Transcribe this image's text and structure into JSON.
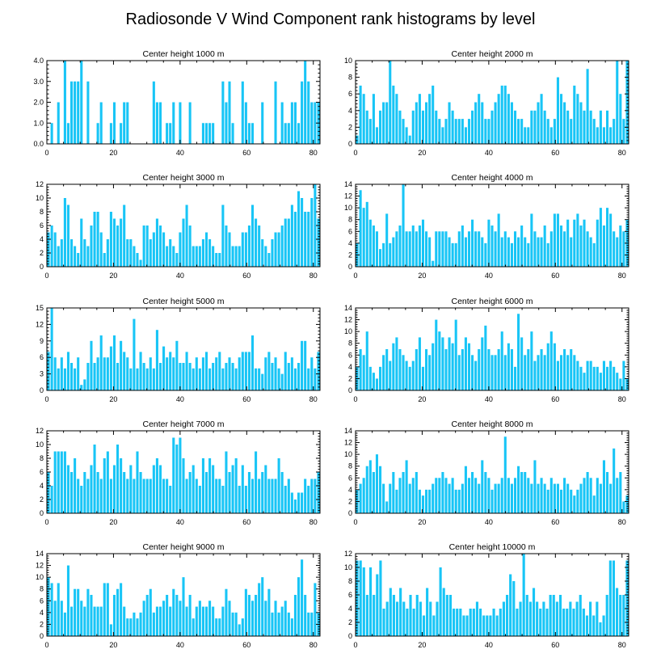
{
  "title": "Radiosonde V Wind Component rank histograms by level",
  "colors": {
    "bar": "#18C5F6",
    "axis": "#000000",
    "background": "#ffffff"
  },
  "chart_data": [
    {
      "type": "bar",
      "title": "Center height 1000 m",
      "xlim": [
        0,
        82
      ],
      "ylim": [
        0,
        4
      ],
      "xticks": [
        0,
        20,
        40,
        60,
        80
      ],
      "yticks": [
        "0.0",
        "1.0",
        "2.0",
        "3.0",
        "4.0"
      ],
      "values": [
        0,
        1,
        0,
        2,
        0,
        4,
        1,
        3,
        3,
        3,
        4,
        0,
        3,
        0,
        0,
        1,
        2,
        0,
        0,
        1,
        2,
        0,
        1,
        2,
        2,
        0,
        0,
        0,
        0,
        0,
        0,
        0,
        3,
        2,
        2,
        0,
        1,
        1,
        2,
        0,
        2,
        0,
        0,
        2,
        0,
        0,
        0,
        1,
        1,
        1,
        1,
        0,
        0,
        3,
        2,
        3,
        1,
        0,
        0,
        3,
        2,
        1,
        1,
        0,
        0,
        2,
        0,
        0,
        0,
        3,
        0,
        2,
        1,
        1,
        2,
        2,
        1,
        3,
        4,
        3,
        2,
        2,
        2
      ]
    },
    {
      "type": "bar",
      "title": "Center height 2000 m",
      "xlim": [
        0,
        82
      ],
      "ylim": [
        0,
        10
      ],
      "xticks": [
        0,
        20,
        40,
        60,
        80
      ],
      "yticks": [
        "0",
        "2",
        "4",
        "6",
        "8",
        "10"
      ],
      "values": [
        1,
        7,
        6,
        4,
        3,
        6,
        2,
        4,
        5,
        5,
        10,
        7,
        6,
        4,
        3,
        2,
        1,
        4,
        5,
        6,
        4,
        5,
        6,
        7,
        4,
        3,
        2,
        3,
        5,
        4,
        3,
        3,
        3,
        2,
        3,
        4,
        5,
        6,
        5,
        3,
        3,
        4,
        5,
        6,
        7,
        7,
        6,
        5,
        4,
        3,
        3,
        2,
        2,
        4,
        4,
        5,
        6,
        4,
        3,
        2,
        3,
        8,
        6,
        5,
        4,
        3,
        7,
        6,
        5,
        4,
        9,
        4,
        3,
        2,
        4,
        2,
        4,
        2,
        3,
        10,
        6,
        3,
        10
      ]
    },
    {
      "type": "bar",
      "title": "Center height 3000 m",
      "xlim": [
        0,
        82
      ],
      "ylim": [
        0,
        12
      ],
      "xticks": [
        0,
        20,
        40,
        60,
        80
      ],
      "yticks": [
        "0",
        "2",
        "4",
        "6",
        "8",
        "10",
        "12"
      ],
      "values": [
        5,
        6,
        5,
        3,
        4,
        10,
        9,
        4,
        3,
        2,
        7,
        4,
        3,
        6,
        8,
        8,
        5,
        2,
        4,
        8,
        7,
        6,
        7,
        9,
        4,
        4,
        3,
        2,
        1,
        6,
        6,
        4,
        5,
        7,
        6,
        5,
        3,
        4,
        3,
        2,
        5,
        7,
        9,
        6,
        3,
        3,
        3,
        4,
        5,
        4,
        3,
        2,
        2,
        9,
        6,
        5,
        3,
        3,
        3,
        5,
        5,
        6,
        9,
        7,
        6,
        4,
        3,
        2,
        4,
        5,
        5,
        6,
        7,
        7,
        9,
        8,
        11,
        10,
        8,
        8,
        10,
        12,
        7
      ]
    },
    {
      "type": "bar",
      "title": "Center height 4000 m",
      "xlim": [
        0,
        82
      ],
      "ylim": [
        0,
        14
      ],
      "xticks": [
        0,
        20,
        40,
        60,
        80
      ],
      "yticks": [
        "0",
        "2",
        "4",
        "6",
        "8",
        "10",
        "12",
        "14"
      ],
      "values": [
        4,
        13,
        10,
        11,
        8,
        7,
        6,
        3,
        4,
        9,
        4,
        5,
        6,
        7,
        14,
        6,
        6,
        7,
        6,
        7,
        8,
        6,
        5,
        1,
        6,
        6,
        6,
        6,
        5,
        4,
        4,
        6,
        7,
        5,
        6,
        8,
        6,
        6,
        5,
        4,
        8,
        7,
        6,
        9,
        5,
        6,
        5,
        4,
        6,
        5,
        7,
        5,
        4,
        9,
        6,
        5,
        5,
        7,
        4,
        6,
        9,
        9,
        7,
        6,
        8,
        5,
        8,
        9,
        7,
        8,
        6,
        5,
        4,
        8,
        10,
        7,
        10,
        9,
        6,
        5,
        7,
        6,
        8
      ]
    },
    {
      "type": "bar",
      "title": "Center height 5000 m",
      "xlim": [
        0,
        82
      ],
      "ylim": [
        0,
        15
      ],
      "xticks": [
        0,
        20,
        40,
        60,
        80
      ],
      "yticks": [
        "0",
        "3",
        "6",
        "9",
        "12",
        "15"
      ],
      "values": [
        7,
        15,
        6,
        4,
        6,
        4,
        7,
        5,
        4,
        6,
        1,
        2,
        5,
        9,
        5,
        6,
        10,
        6,
        6,
        8,
        10,
        5,
        9,
        7,
        6,
        4,
        13,
        4,
        7,
        5,
        4,
        6,
        4,
        11,
        5,
        8,
        6,
        7,
        6,
        9,
        5,
        5,
        7,
        5,
        4,
        6,
        4,
        6,
        7,
        4,
        5,
        6,
        7,
        4,
        5,
        6,
        5,
        4,
        6,
        7,
        7,
        7,
        10,
        4,
        4,
        3,
        6,
        7,
        5,
        6,
        4,
        3,
        7,
        5,
        6,
        4,
        5,
        9,
        9,
        4,
        6,
        4,
        7
      ]
    },
    {
      "type": "bar",
      "title": "Center height 6000 m",
      "xlim": [
        0,
        82
      ],
      "ylim": [
        0,
        14
      ],
      "xticks": [
        0,
        20,
        40,
        60,
        80
      ],
      "yticks": [
        "0",
        "2",
        "4",
        "6",
        "8",
        "10",
        "12",
        "14"
      ],
      "values": [
        4,
        7,
        6,
        10,
        4,
        3,
        2,
        4,
        6,
        7,
        5,
        8,
        9,
        7,
        6,
        5,
        4,
        5,
        7,
        9,
        4,
        7,
        6,
        8,
        12,
        10,
        9,
        7,
        9,
        8,
        12,
        6,
        7,
        9,
        8,
        6,
        5,
        7,
        9,
        11,
        7,
        6,
        6,
        7,
        10,
        6,
        8,
        7,
        4,
        13,
        9,
        6,
        7,
        10,
        5,
        6,
        7,
        6,
        8,
        10,
        8,
        5,
        6,
        7,
        6,
        7,
        6,
        5,
        4,
        3,
        5,
        5,
        4,
        4,
        3,
        5,
        4,
        5,
        4,
        3,
        2,
        5,
        2
      ]
    },
    {
      "type": "bar",
      "title": "Center height 7000 m",
      "xlim": [
        0,
        82
      ],
      "ylim": [
        0,
        12
      ],
      "xticks": [
        0,
        20,
        40,
        60,
        80
      ],
      "yticks": [
        "0",
        "2",
        "4",
        "6",
        "8",
        "10",
        "12"
      ],
      "values": [
        6,
        4,
        9,
        9,
        9,
        9,
        7,
        6,
        8,
        5,
        4,
        6,
        5,
        7,
        10,
        6,
        5,
        8,
        9,
        5,
        7,
        10,
        8,
        6,
        5,
        7,
        5,
        9,
        6,
        5,
        5,
        5,
        7,
        8,
        7,
        5,
        5,
        4,
        11,
        10,
        11,
        8,
        5,
        6,
        7,
        5,
        4,
        8,
        6,
        8,
        7,
        5,
        5,
        4,
        9,
        6,
        7,
        8,
        4,
        7,
        4,
        6,
        5,
        9,
        5,
        6,
        7,
        5,
        5,
        5,
        8,
        6,
        4,
        5,
        3,
        2,
        3,
        3,
        5,
        4,
        5,
        5,
        6
      ]
    },
    {
      "type": "bar",
      "title": "Center height 8000 m",
      "xlim": [
        0,
        82
      ],
      "ylim": [
        0,
        14
      ],
      "xticks": [
        0,
        20,
        40,
        60,
        80
      ],
      "yticks": [
        "0",
        "2",
        "4",
        "6",
        "8",
        "10",
        "12",
        "14"
      ],
      "values": [
        4,
        5,
        6,
        8,
        9,
        7,
        10,
        8,
        5,
        2,
        5,
        7,
        4,
        6,
        7,
        9,
        5,
        6,
        7,
        4,
        3,
        4,
        4,
        5,
        6,
        6,
        7,
        6,
        5,
        6,
        4,
        4,
        5,
        8,
        6,
        7,
        6,
        5,
        9,
        7,
        6,
        4,
        5,
        5,
        6,
        13,
        6,
        5,
        6,
        8,
        7,
        7,
        6,
        5,
        9,
        5,
        6,
        5,
        4,
        6,
        5,
        5,
        4,
        6,
        5,
        4,
        3,
        4,
        5,
        6,
        7,
        6,
        3,
        6,
        5,
        9,
        7,
        5,
        11,
        6,
        7,
        2,
        3
      ]
    },
    {
      "type": "bar",
      "title": "Center height 9000 m",
      "xlim": [
        0,
        82
      ],
      "ylim": [
        0,
        14
      ],
      "xticks": [
        0,
        20,
        40,
        60,
        80
      ],
      "yticks": [
        "0",
        "2",
        "4",
        "6",
        "8",
        "10",
        "12",
        "14"
      ],
      "values": [
        10,
        9,
        6,
        9,
        6,
        4,
        12,
        5,
        8,
        8,
        6,
        5,
        8,
        7,
        5,
        5,
        5,
        9,
        9,
        2,
        7,
        8,
        9,
        5,
        3,
        3,
        4,
        3,
        4,
        6,
        7,
        8,
        4,
        5,
        5,
        6,
        7,
        5,
        8,
        7,
        6,
        10,
        5,
        7,
        3,
        5,
        6,
        5,
        5,
        6,
        5,
        3,
        3,
        5,
        8,
        6,
        4,
        4,
        2,
        3,
        8,
        7,
        6,
        7,
        9,
        10,
        6,
        8,
        4,
        6,
        4,
        5,
        6,
        4,
        3,
        7,
        10,
        13,
        7,
        4,
        4,
        9,
        4
      ]
    },
    {
      "type": "bar",
      "title": "Center height 10000 m",
      "xlim": [
        0,
        82
      ],
      "ylim": [
        0,
        12
      ],
      "xticks": [
        0,
        20,
        40,
        60,
        80
      ],
      "yticks": [
        "0",
        "2",
        "4",
        "6",
        "8",
        "10",
        "12"
      ],
      "values": [
        11,
        11,
        10,
        6,
        10,
        6,
        9,
        11,
        4,
        5,
        7,
        6,
        5,
        7,
        5,
        4,
        6,
        4,
        6,
        5,
        3,
        7,
        5,
        3,
        5,
        10,
        7,
        6,
        6,
        4,
        4,
        4,
        3,
        3,
        4,
        4,
        5,
        4,
        3,
        3,
        3,
        4,
        3,
        4,
        5,
        6,
        9,
        8,
        4,
        5,
        12,
        6,
        5,
        7,
        5,
        4,
        5,
        4,
        6,
        6,
        5,
        6,
        4,
        4,
        5,
        4,
        5,
        6,
        4,
        3,
        5,
        3,
        5,
        2,
        3,
        6,
        11,
        11,
        7,
        6,
        6,
        11
      ]
    }
  ]
}
